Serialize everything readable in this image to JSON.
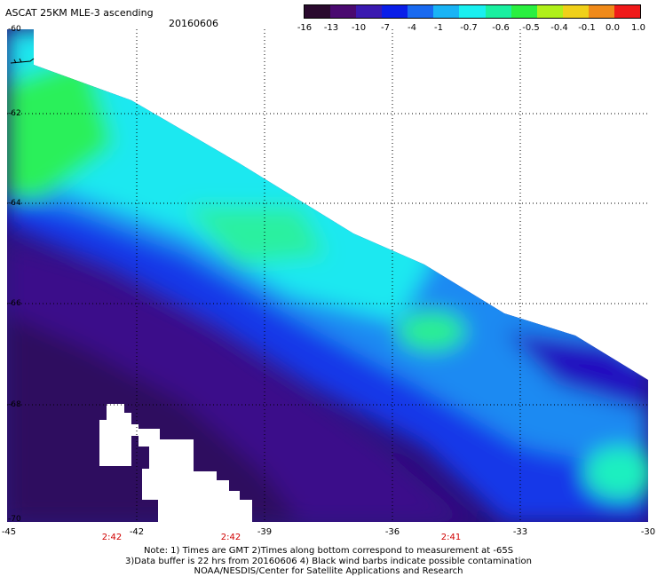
{
  "title": "ASCAT 25KM MLE-3 ascending",
  "date": "20160606",
  "colorbar": {
    "labels": [
      "-16",
      "-13",
      "-10",
      "-7",
      "-4",
      "-1",
      "-0.7",
      "-0.6",
      "-0.5",
      "-0.4",
      "-0.1",
      "0.0",
      "1.0"
    ],
    "colors": [
      "#2a0a2e",
      "#4a0a70",
      "#3a1ab0",
      "#0a1ee8",
      "#1a6af0",
      "#1ab4f5",
      "#1af0f0",
      "#1af0a0",
      "#2af040",
      "#b0f01a",
      "#f0d01a",
      "#f08a1a",
      "#f01a1a"
    ]
  },
  "lat_labels": [
    "-60",
    "-62",
    "-64",
    "-66",
    "-68",
    "-70"
  ],
  "lon_labels": [
    "-45",
    "-42",
    "-39",
    "-36",
    "-33",
    "-30"
  ],
  "time_labels": [
    "2:42",
    "2:42",
    "2:41"
  ],
  "notes": [
    "Note: 1) Times are GMT 2)Times along bottom correspond to measurement at -65S",
    "3)Data buffer is 22 hrs from 20160606 4) Black wind barbs indicate possible contamination",
    "NOAA/NESDIS/Center for Satellite Applications and Research"
  ]
}
